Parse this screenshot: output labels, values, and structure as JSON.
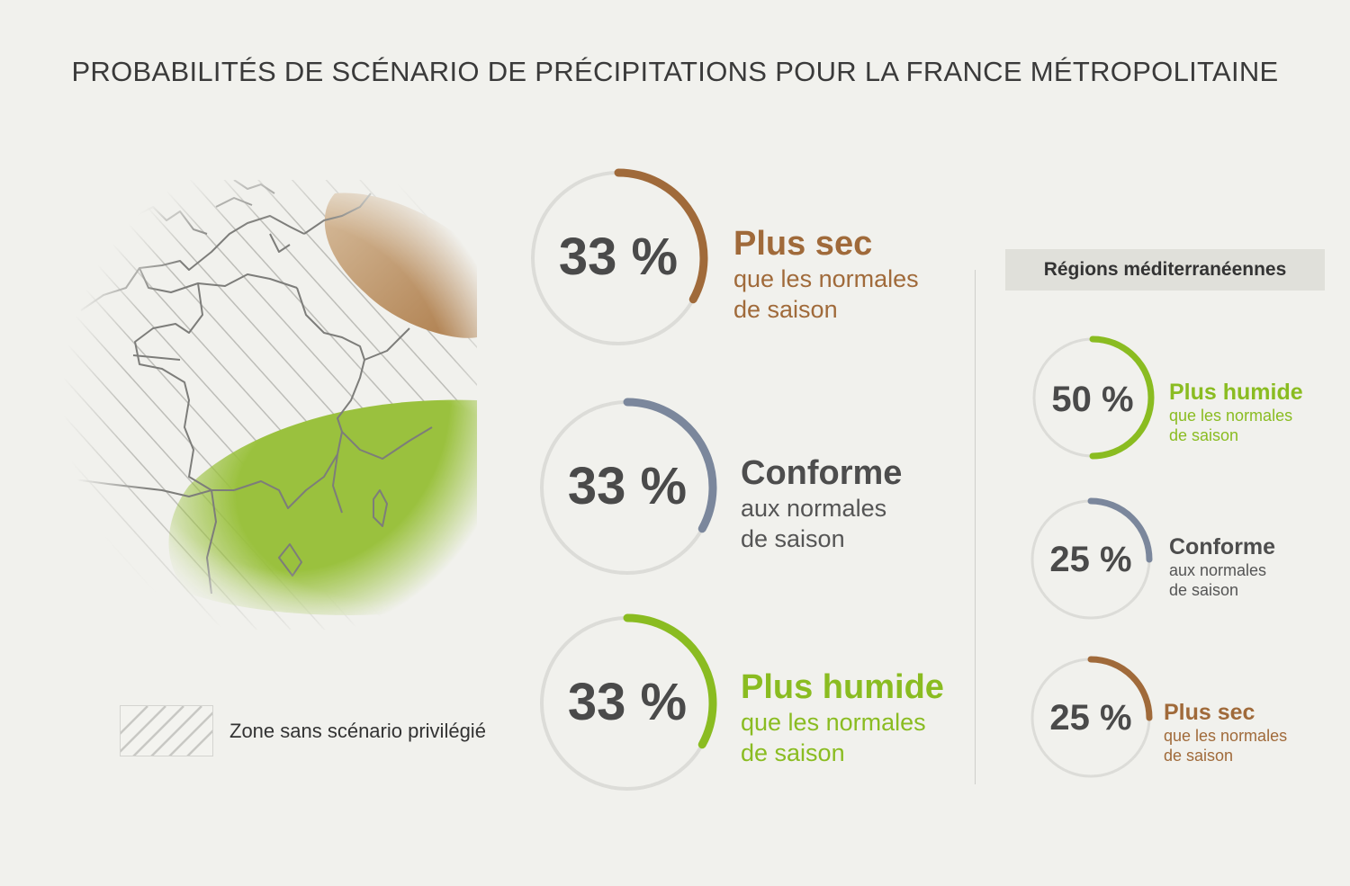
{
  "title": "PROBABILITÉS DE SCÉNARIO DE PRÉCIPITATIONS POUR LA FRANCE MÉTROPOLITAINE",
  "legend": {
    "label": "Zone sans scénario privilégié"
  },
  "region_header": "Régions méditerranéennes",
  "colors": {
    "sec": "#a06a3a",
    "conforme": "#7b879c",
    "humide": "#8abc21",
    "track": "#dcdcd8",
    "text": "#4a4a4a"
  },
  "chart_data": [
    {
      "type": "donut",
      "title": "",
      "categories": [
        "Plus sec",
        "Conforme",
        "Plus humide"
      ],
      "values": [
        33,
        33,
        33
      ],
      "unit": "%",
      "items": [
        {
          "value": 33,
          "pct": "33 %",
          "label": "Plus sec",
          "sub1": "que les normales",
          "sub2": "de saison",
          "color": "#a06a3a"
        },
        {
          "value": 33,
          "pct": "33 %",
          "label": "Conforme",
          "sub1": "aux normales",
          "sub2": "de saison",
          "color": "#7b879c"
        },
        {
          "value": 33,
          "pct": "33 %",
          "label": "Plus humide",
          "sub1": "que les normales",
          "sub2": "de saison",
          "color": "#8abc21"
        }
      ]
    },
    {
      "type": "donut",
      "title": "Régions méditerranéennes",
      "categories": [
        "Plus humide",
        "Conforme",
        "Plus sec"
      ],
      "values": [
        50,
        25,
        25
      ],
      "unit": "%",
      "items": [
        {
          "value": 50,
          "pct": "50 %",
          "label": "Plus humide",
          "sub1": "que les normales",
          "sub2": "de saison",
          "color": "#8abc21"
        },
        {
          "value": 25,
          "pct": "25 %",
          "label": "Conforme",
          "sub1": "aux normales",
          "sub2": "de saison",
          "color": "#7b879c"
        },
        {
          "value": 25,
          "pct": "25 %",
          "label": "Plus sec",
          "sub1": "que les normales",
          "sub2": "de saison",
          "color": "#a06a3a"
        }
      ]
    }
  ]
}
